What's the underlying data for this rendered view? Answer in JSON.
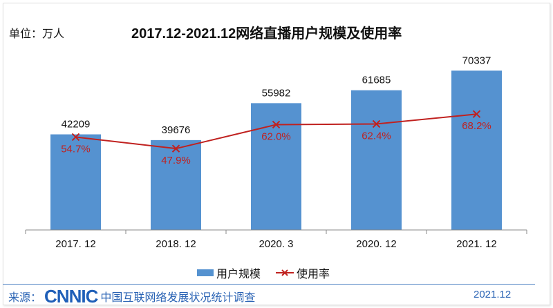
{
  "header": {
    "unit": "单位：万人",
    "title": "2017.12-2021.12网络直播用户规模及使用率"
  },
  "legend": {
    "bar": "用户规模",
    "line": "使用率"
  },
  "footer": {
    "source_label": "来源：",
    "logo": "CNNIC",
    "source_text": "中国互联网络发展状况统计调查",
    "date": "2021.12"
  },
  "colors": {
    "bar": "#5592d0",
    "line": "#c0211f",
    "label_pct": "#c0211f"
  },
  "chart_data": {
    "type": "bar+line",
    "title": "2017.12-2021.12网络直播用户规模及使用率",
    "categories": [
      "2017. 12",
      "2018. 12",
      "2020. 3",
      "2020. 12",
      "2021. 12"
    ],
    "series": [
      {
        "name": "用户规模",
        "type": "bar",
        "values": [
          42209,
          39676,
          55982,
          61685,
          70337
        ],
        "labels": [
          "42209",
          "39676",
          "55982",
          "61685",
          "70337"
        ]
      },
      {
        "name": "使用率",
        "type": "line",
        "values": [
          54.7,
          47.9,
          62.0,
          62.4,
          68.2
        ],
        "labels": [
          "54.7%",
          "47.9%",
          "62.0%",
          "62.4%",
          "68.2%"
        ]
      }
    ],
    "ylim": [
      0,
      75000
    ],
    "y2lim": [
      0,
      100
    ],
    "grid": false,
    "legend_position": "bottom"
  }
}
